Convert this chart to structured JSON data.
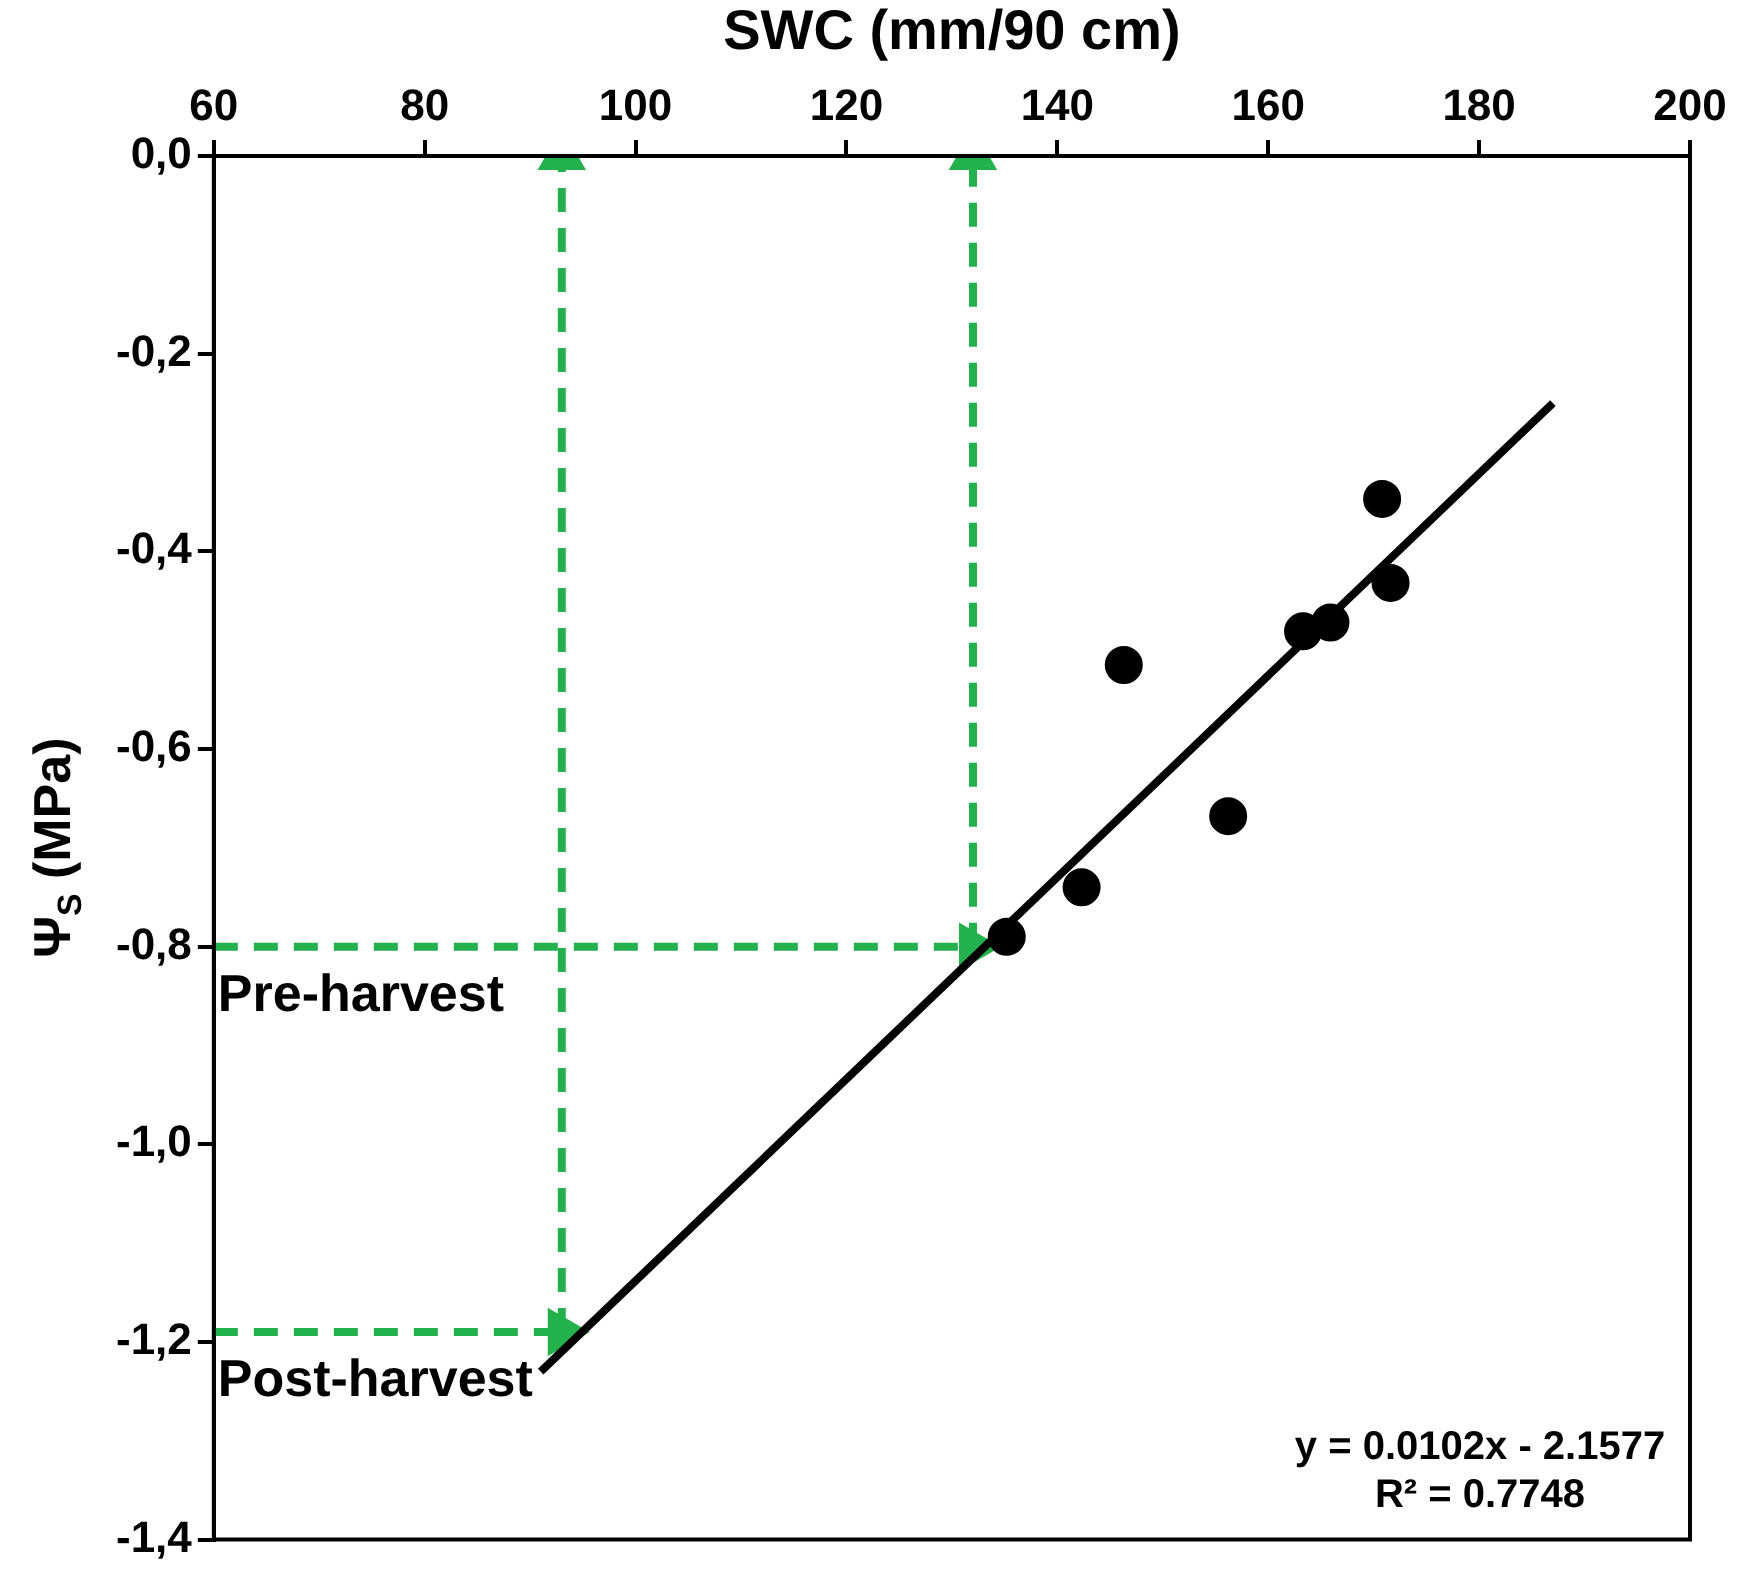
{
  "chart_data": {
    "type": "scatter",
    "xlabel": "SWC (mm/90 cm)",
    "ylabel": "Ψ$_{S}$ (MPa)",
    "xlim": [
      60,
      200
    ],
    "xticks": [
      60,
      80,
      100,
      120,
      140,
      160,
      180,
      200
    ],
    "ylim": [
      -1.4,
      0
    ],
    "yticks": [
      {
        "value": -1.4,
        "label": "-1,4"
      },
      {
        "value": -1.2,
        "label": "-1,2"
      },
      {
        "value": -1,
        "label": "-1,0"
      },
      {
        "value": -0.8,
        "label": "-0,8"
      },
      {
        "value": -0.6,
        "label": "-0,6"
      },
      {
        "value": -0.4,
        "label": "-0,4"
      },
      {
        "value": -0.2,
        "label": "-0,2"
      },
      {
        "value": 0,
        "label": "0,0"
      }
    ],
    "grid": false,
    "legend": false,
    "marker": "circle",
    "series": [
      {
        "color": "#000000",
        "x": [
          135.2,
          142.3,
          146.3,
          156.2,
          163.3,
          165.9,
          170.8,
          171.6
        ],
        "values": [
          -0.79,
          -0.74,
          -0.515,
          -0.668,
          -0.481,
          -0.472,
          -0.347,
          -0.432
        ]
      },
      {
        "type": "line",
        "color": "#000000",
        "line_style": "solid",
        "marker": "none",
        "x": [
          91,
          187
        ],
        "values": [
          -1.23,
          -0.25
        ]
      },
      {
        "type": "line",
        "color": "#22b14c",
        "line_style": "dashed",
        "marker": "triangle",
        "x": [
          60,
          132
        ],
        "values": [
          -0.8,
          -0.8
        ]
      },
      {
        "type": "line",
        "color": "#22b14c",
        "line_style": "dashed",
        "marker": "triangle",
        "x": [
          132,
          132
        ],
        "values": [
          -0.8,
          0
        ]
      },
      {
        "type": "line",
        "color": "#22b14c",
        "line_style": "dashed",
        "marker": "triangle",
        "x": [
          60,
          93
        ],
        "values": [
          -1.19,
          -1.19
        ]
      },
      {
        "type": "line",
        "color": "#22b14c",
        "line_style": "dashed",
        "marker": "triangle",
        "x": [
          93,
          93
        ],
        "values": [
          -1.19,
          0
        ]
      }
    ],
    "annotations": [
      {
        "text": "Pre-harvest",
        "x": 60,
        "y": -0.8
      },
      {
        "text": "Post-harvest",
        "x": 60,
        "y": -1.19
      },
      "y = 0.0102x - 2.1577",
      "R² = 0.7748"
    ]
  }
}
